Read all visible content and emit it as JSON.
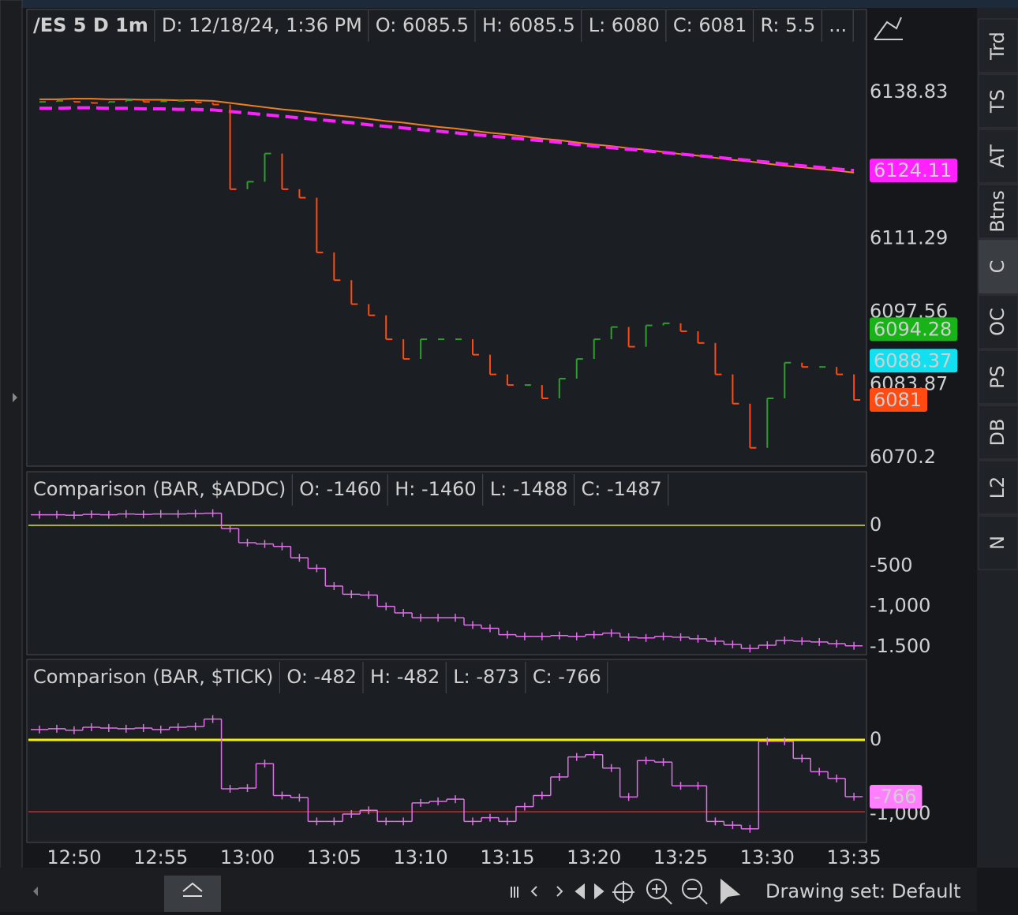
{
  "header": {
    "symbol": "/ES 5 D 1m",
    "fields": [
      "D: 12/18/24, 1:36 PM",
      "O: 6085.5",
      "H: 6085.5",
      "L: 6080",
      "C: 6081",
      "R: 5.5",
      "..."
    ]
  },
  "side_tabs": [
    "Trd",
    "TS",
    "AT",
    "Btns",
    "C",
    "OC",
    "PS",
    "DB",
    "L2",
    "N"
  ],
  "toolbar": {
    "drawing_set": "Drawing set: Default"
  },
  "chart_data": [
    {
      "type": "bar",
      "categories": [
        null,
        null,
        "12:50",
        null,
        null,
        null,
        null,
        "12:55",
        null,
        null,
        null,
        null,
        "13:00",
        null,
        null,
        null,
        null,
        "13:05",
        null,
        null,
        null,
        null,
        "13:10",
        null,
        null,
        null,
        null,
        "13:15",
        null,
        null,
        null,
        null,
        "13:20",
        null,
        null,
        null,
        null,
        "13:25",
        null,
        null,
        null,
        null,
        "13:30",
        null,
        null,
        null,
        null,
        "13:35"
      ],
      "values": [
        6137,
        6137.2,
        6137,
        6136.8,
        6137,
        6137.3,
        6137,
        6137.1,
        6137.2,
        6136.9,
        6136.5,
        6120.6,
        6122,
        6127.3,
        6120.6,
        6119,
        6108.7,
        6103.5,
        6099,
        6096.9,
        6092.4,
        6088.7,
        6092.4,
        6092.4,
        6092.4,
        6089.5,
        6085.8,
        6083.8,
        6083.8,
        6081.3,
        6085,
        6088.7,
        6092.4,
        6094.7,
        6091,
        6095,
        6095.4,
        6093.9,
        6091.7,
        6085.8,
        6080.3,
        6072,
        6081.3,
        6088,
        6087.2,
        6087.2,
        6085.8,
        6081
      ],
      "up_color": "#2e9e2e",
      "down_color": "#ff4a12",
      "overlays": [
        {
          "color": "#f07f1e",
          "dashed": false,
          "values": [
            6137.5,
            6137.5,
            6137.6,
            6137.6,
            6137.5,
            6137.5,
            6137.4,
            6137.4,
            6137.3,
            6137.3,
            6137.2,
            6136.8,
            6136.4,
            6136.0,
            6135.6,
            6135.3,
            6134.9,
            6134.5,
            6134.2,
            6133.8,
            6133.4,
            6133.1,
            6132.7,
            6132.3,
            6132.0,
            6131.6,
            6131.2,
            6130.9,
            6130.5,
            6130.1,
            6129.8,
            6129.4,
            6129.0,
            6128.7,
            6128.3,
            6128.0,
            6127.6,
            6127.2,
            6126.9,
            6126.5,
            6126.1,
            6125.8,
            6125.4,
            6125.0,
            6124.7,
            6124.4,
            6124.1,
            6123.7
          ]
        },
        {
          "color": "#ff22ff",
          "dashed": true,
          "values": [
            6135.8,
            6135.8,
            6135.9,
            6135.9,
            6135.8,
            6135.8,
            6135.7,
            6135.7,
            6135.6,
            6135.6,
            6135.5,
            6135.2,
            6134.9,
            6134.6,
            6134.3,
            6134.0,
            6133.7,
            6133.4,
            6133.1,
            6132.7,
            6132.4,
            6132.1,
            6131.8,
            6131.5,
            6131.2,
            6130.9,
            6130.6,
            6130.3,
            6130.0,
            6129.7,
            6129.4,
            6129.0,
            6128.7,
            6128.4,
            6128.1,
            6127.8,
            6127.5,
            6127.2,
            6126.9,
            6126.6,
            6126.3,
            6126.0,
            6125.7,
            6125.3,
            6125.0,
            6124.7,
            6124.4,
            6124.11
          ]
        }
      ],
      "ylim": [
        6068.7,
        6147.7
      ],
      "yticks": [
        6138.83,
        6111.29,
        6097.56,
        6083.87,
        6070.2
      ],
      "badges": [
        {
          "value": 6124.11,
          "color": "#ff22ff",
          "text_color": "#ffffff"
        },
        {
          "value": 6094.28,
          "color": "#17b317",
          "text_color": "#ffffff"
        },
        {
          "value": 6088.37,
          "color": "#11e0f0",
          "text_color": "#111111"
        },
        {
          "value": 6081,
          "color": "#ff4a12",
          "text_color": "#ffffff"
        }
      ]
    },
    {
      "type": "step",
      "title": "Comparison (BAR, $ADDC)",
      "fields": [
        "O: -1460",
        "H: -1460",
        "L: -1488",
        "C: -1487"
      ],
      "color": "#e070e8",
      "values": [
        130,
        130,
        125,
        135,
        130,
        140,
        135,
        140,
        140,
        145,
        150,
        -40,
        -214,
        -230,
        -260,
        -400,
        -530,
        -750,
        -850,
        -860,
        -1000,
        -1080,
        -1140,
        -1140,
        -1140,
        -1230,
        -1270,
        -1350,
        -1370,
        -1370,
        -1360,
        -1370,
        -1350,
        -1330,
        -1380,
        -1390,
        -1370,
        -1380,
        -1400,
        -1430,
        -1470,
        -1520,
        -1480,
        -1420,
        -1430,
        -1440,
        -1460,
        -1487
      ],
      "ylim": [
        -1577,
        253
      ],
      "yticks": [
        0,
        -500,
        {
          "value": -1000,
          "label": "-1,000"
        },
        {
          "value": -1500,
          "label": "-1.500"
        }
      ],
      "levels": [
        {
          "value": 0,
          "color": "#e6e600"
        }
      ]
    },
    {
      "type": "step",
      "title": "Comparison (BAR, $TICK)",
      "fields": [
        "O: -482",
        "H: -482",
        "L: -873",
        "C: -766"
      ],
      "color": "#e070e8",
      "values": [
        140,
        150,
        130,
        170,
        160,
        150,
        160,
        140,
        170,
        180,
        280,
        -660,
        -650,
        -320,
        -750,
        -780,
        -1100,
        -1100,
        -1000,
        -950,
        -1100,
        -1100,
        -850,
        -830,
        -800,
        -1100,
        -1050,
        -1100,
        -900,
        -750,
        -500,
        -230,
        -200,
        -380,
        -770,
        -280,
        -300,
        -620,
        -620,
        -1100,
        -1150,
        -1200,
        -20,
        -20,
        -250,
        -430,
        -520,
        -766
      ],
      "ylim": [
        -1362,
        617
      ],
      "yticks": [
        0,
        {
          "value": -1000,
          "label": "-1,000"
        }
      ],
      "levels": [
        {
          "value": 0,
          "color": "#f2f200"
        },
        {
          "value": -970,
          "color": "#e02020"
        }
      ],
      "badges": [
        {
          "value": -766,
          "color": "#ff7fff",
          "text_color": "#111111"
        }
      ]
    }
  ]
}
